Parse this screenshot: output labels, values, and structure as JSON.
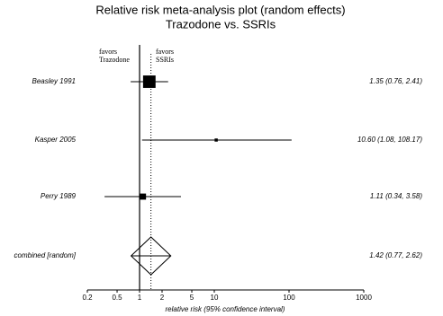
{
  "chart_data": {
    "type": "forest",
    "title": "Relative risk meta-analysis plot (random effects)",
    "subtitle": "Trazodone vs. SSRIs",
    "favors_left": [
      "favors",
      "Trazodone"
    ],
    "favors_right": [
      "favors",
      "SSRIs"
    ],
    "xlabel": "relative risk (95% confidence interval)",
    "categories": [
      "Beasley 1991",
      "Kasper 2005",
      "Perry 1989"
    ],
    "values": [
      1.35,
      10.6,
      1.11
    ],
    "ci_low": [
      0.76,
      1.08,
      0.34
    ],
    "ci_high": [
      2.41,
      108.17,
      3.58
    ],
    "value_labels": [
      "1.35 (0.76, 2.41)",
      "10.60 (1.08, 108.17)",
      "1.11 (0.34, 3.58)"
    ],
    "combined": {
      "name": "combined [random]",
      "value": 1.42,
      "ci_low": 0.77,
      "ci_high": 2.62,
      "value_label": "1.42 (0.77, 2.62)"
    },
    "reference": 1,
    "log_x": true,
    "xlim": [
      0.2,
      1000
    ],
    "xticks": [
      0.2,
      0.5,
      1,
      2,
      5,
      10,
      100,
      1000
    ]
  }
}
